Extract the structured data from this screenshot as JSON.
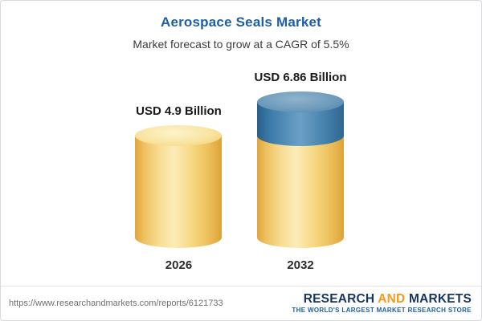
{
  "chart_data": {
    "type": "bar",
    "title": "Aerospace Seals Market",
    "subtitle": "Market forecast to grow at a CAGR of 5.5%",
    "unit": "USD Billion",
    "cagr": "5.5%",
    "categories": [
      "2026",
      "2032"
    ],
    "values": [
      4.9,
      6.86
    ],
    "bars": [
      {
        "category": "2026",
        "value": 4.9,
        "label": "USD 4.9 Billion",
        "segments": [
          {
            "name": "base",
            "value": 4.9,
            "color": "#f5d078"
          }
        ]
      },
      {
        "category": "2032",
        "value": 6.86,
        "label": "USD 6.86 Billion",
        "segments": [
          {
            "name": "base",
            "value": 4.9,
            "color": "#f5d078"
          },
          {
            "name": "growth",
            "value": 1.96,
            "color": "#3a77a3"
          }
        ]
      }
    ],
    "legend_position": "none",
    "grid": false
  },
  "footer": {
    "url": "https://www.researchandmarkets.com/reports/6121733",
    "brand": {
      "word1": "RESEARCH",
      "word2": "AND",
      "word3": "MARKETS",
      "tagline": "THE WORLD'S LARGEST MARKET RESEARCH STORE"
    }
  },
  "colors": {
    "title": "#1c5fa8",
    "cylinder_yellow": "#f5d078",
    "cylinder_blue": "#3a77a3",
    "brand_navy": "#16355f",
    "brand_orange": "#f49a1c"
  }
}
